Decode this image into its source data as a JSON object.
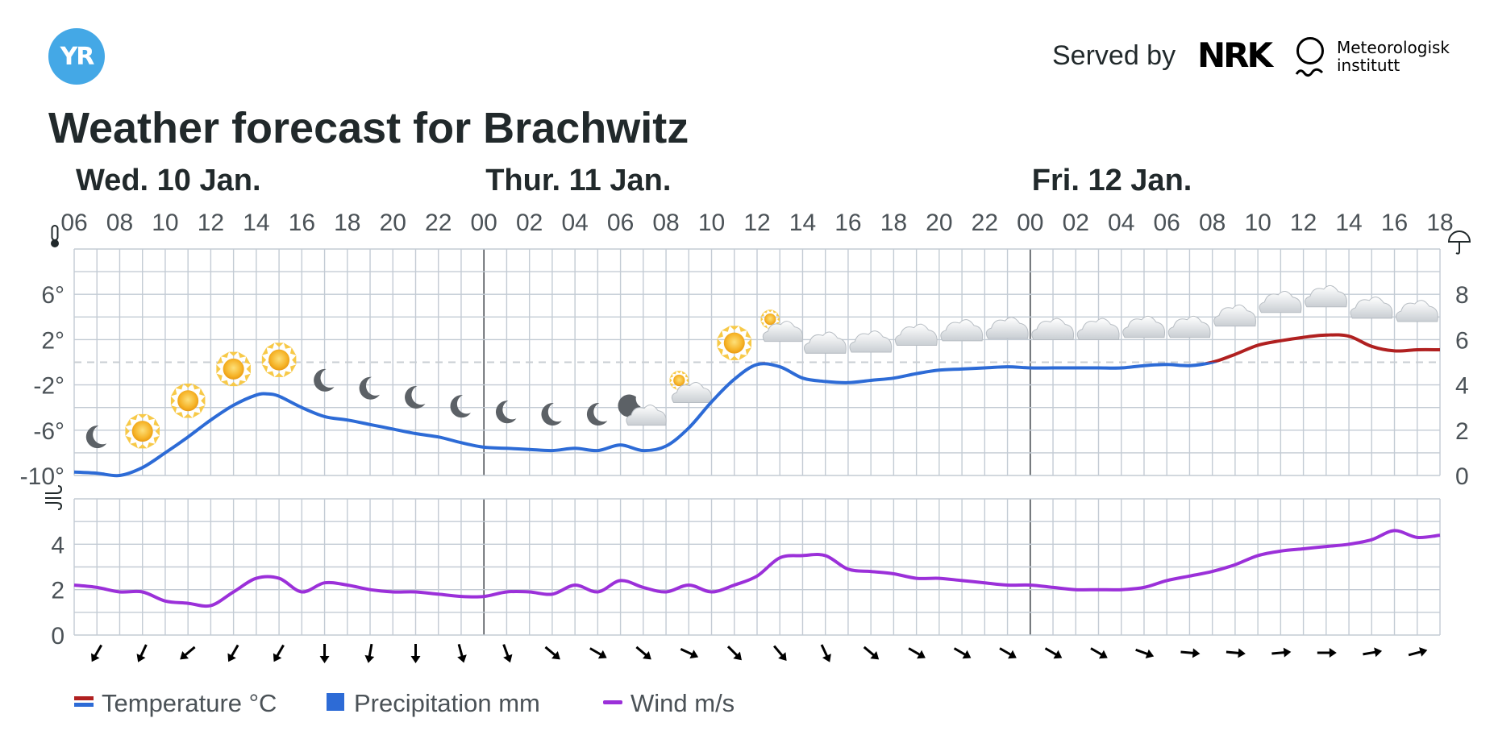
{
  "header": {
    "logo_text": "YR",
    "served_by": "Served by",
    "nrk_logo_text": "NRK",
    "met_text_line1": "Meteorologisk",
    "met_text_line2": "institutt"
  },
  "page_title": "Weather forecast for Brachwitz",
  "chart_data": [
    {
      "type": "line",
      "title": "",
      "days": [
        {
          "label": "Wed. 10 Jan.",
          "start_hour": 6
        },
        {
          "label": "Thur. 11 Jan.",
          "start_hour": 24
        },
        {
          "label": "Fri. 12 Jan.",
          "start_hour": 48
        }
      ],
      "x_range_hours": [
        6,
        66
      ],
      "x_tick_labels": [
        "06",
        "08",
        "10",
        "12",
        "14",
        "16",
        "18",
        "20",
        "22",
        "00",
        "02",
        "04",
        "06",
        "08",
        "10",
        "12",
        "14",
        "16",
        "18",
        "20",
        "22",
        "00",
        "02",
        "04",
        "06",
        "08",
        "10",
        "12",
        "14",
        "16",
        "18"
      ],
      "x_tick_hours": [
        6,
        8,
        10,
        12,
        14,
        16,
        18,
        20,
        22,
        24,
        26,
        28,
        30,
        32,
        34,
        36,
        38,
        40,
        42,
        44,
        46,
        48,
        50,
        52,
        54,
        56,
        58,
        60,
        62,
        64,
        66
      ],
      "ylabel_left": "thermometer-icon",
      "ylabel_right": "umbrella-icon",
      "y_left_ticks": [
        "6°",
        "2°",
        "-2°",
        "-6°",
        "-10°"
      ],
      "y_left_tick_values": [
        6,
        2,
        -2,
        -6,
        -10
      ],
      "y_left_range": [
        -10,
        10
      ],
      "y_right_ticks": [
        "8",
        "6",
        "4",
        "2",
        "0"
      ],
      "y_right_tick_values": [
        8,
        6,
        4,
        2,
        0
      ],
      "y_right_range": [
        0,
        10
      ],
      "zero_line": "dashed",
      "grid": true,
      "series": [
        {
          "name": "Temperature °C",
          "color_below_zero": "#2d6bd6",
          "color_above_zero": "#b02020",
          "x": [
            6,
            7,
            8,
            9,
            10,
            11,
            12,
            13,
            14,
            14.5,
            15,
            16,
            17,
            18,
            19,
            20,
            21,
            22,
            23,
            24,
            25,
            26,
            27,
            28,
            29,
            30,
            31,
            32,
            33,
            34,
            35,
            36,
            37,
            38,
            39,
            40,
            41,
            42,
            43,
            44,
            45,
            46,
            47,
            48,
            49,
            50,
            51,
            52,
            53,
            54,
            55,
            56,
            57,
            58,
            59,
            60,
            61,
            62,
            63,
            64,
            65,
            66
          ],
          "values": [
            -9.7,
            -9.8,
            -10.0,
            -9.3,
            -8.0,
            -6.6,
            -5.1,
            -3.8,
            -2.9,
            -2.8,
            -3.0,
            -4.0,
            -4.8,
            -5.1,
            -5.5,
            -5.9,
            -6.3,
            -6.6,
            -7.1,
            -7.5,
            -7.6,
            -7.7,
            -7.8,
            -7.6,
            -7.8,
            -7.3,
            -7.8,
            -7.4,
            -5.8,
            -3.5,
            -1.5,
            -0.2,
            -0.4,
            -1.4,
            -1.7,
            -1.8,
            -1.6,
            -1.4,
            -1.0,
            -0.7,
            -0.6,
            -0.5,
            -0.4,
            -0.5,
            -0.5,
            -0.5,
            -0.5,
            -0.5,
            -0.3,
            -0.2,
            -0.3,
            0.0,
            0.7,
            1.5,
            1.9,
            2.2,
            2.4,
            2.3,
            1.4,
            1.0,
            1.1,
            1.1
          ]
        }
      ],
      "symbols": [
        {
          "hour": 7,
          "icon": "moon-icon"
        },
        {
          "hour": 9,
          "icon": "sun-icon"
        },
        {
          "hour": 11,
          "icon": "sun-icon"
        },
        {
          "hour": 13,
          "icon": "sun-icon"
        },
        {
          "hour": 15,
          "icon": "sun-icon"
        },
        {
          "hour": 17,
          "icon": "moon-icon"
        },
        {
          "hour": 19,
          "icon": "moon-icon"
        },
        {
          "hour": 21,
          "icon": "moon-icon"
        },
        {
          "hour": 23,
          "icon": "moon-icon"
        },
        {
          "hour": 25,
          "icon": "moon-icon"
        },
        {
          "hour": 27,
          "icon": "moon-icon"
        },
        {
          "hour": 29,
          "icon": "moon-icon"
        },
        {
          "hour": 31,
          "icon": "moon-cloud-icon"
        },
        {
          "hour": 33,
          "icon": "sun-cloud-icon"
        },
        {
          "hour": 35,
          "icon": "sun-icon"
        },
        {
          "hour": 37,
          "icon": "sun-cloud-icon"
        },
        {
          "hour": 39,
          "icon": "cloud-icon"
        },
        {
          "hour": 41,
          "icon": "cloud-icon"
        },
        {
          "hour": 43,
          "icon": "cloud-icon"
        },
        {
          "hour": 45,
          "icon": "cloud-icon"
        },
        {
          "hour": 47,
          "icon": "cloud-icon"
        },
        {
          "hour": 49,
          "icon": "cloud-icon"
        },
        {
          "hour": 51,
          "icon": "cloud-icon"
        },
        {
          "hour": 53,
          "icon": "cloud-icon"
        },
        {
          "hour": 55,
          "icon": "cloud-icon"
        },
        {
          "hour": 57,
          "icon": "cloud-icon"
        },
        {
          "hour": 59,
          "icon": "cloud-icon"
        },
        {
          "hour": 61,
          "icon": "cloud-icon"
        },
        {
          "hour": 63,
          "icon": "cloud-icon"
        },
        {
          "hour": 65,
          "icon": "cloud-icon"
        }
      ]
    },
    {
      "type": "line",
      "title": "",
      "ylabel": "wind-icon",
      "y_ticks": [
        "4",
        "2",
        "0"
      ],
      "y_tick_values": [
        4,
        2,
        0
      ],
      "y_range": [
        0,
        6
      ],
      "grid": true,
      "series": [
        {
          "name": "Wind m/s",
          "color": "#9b30d9",
          "x": [
            6,
            7,
            8,
            9,
            10,
            11,
            12,
            13,
            14,
            15,
            16,
            17,
            18,
            19,
            20,
            21,
            22,
            23,
            24,
            25,
            26,
            27,
            28,
            29,
            30,
            31,
            32,
            33,
            34,
            35,
            36,
            37,
            38,
            39,
            40,
            41,
            42,
            43,
            44,
            45,
            46,
            47,
            48,
            49,
            50,
            51,
            52,
            53,
            54,
            55,
            56,
            57,
            58,
            59,
            60,
            61,
            62,
            63,
            64,
            65,
            66
          ],
          "values": [
            2.2,
            2.1,
            1.9,
            1.9,
            1.5,
            1.4,
            1.3,
            1.9,
            2.5,
            2.5,
            1.9,
            2.3,
            2.2,
            2.0,
            1.9,
            1.9,
            1.8,
            1.7,
            1.7,
            1.9,
            1.9,
            1.8,
            2.2,
            1.9,
            2.4,
            2.1,
            1.9,
            2.2,
            1.9,
            2.2,
            2.6,
            3.4,
            3.5,
            3.5,
            2.9,
            2.8,
            2.7,
            2.5,
            2.5,
            2.4,
            2.3,
            2.2,
            2.2,
            2.1,
            2.0,
            2.0,
            2.0,
            2.1,
            2.4,
            2.6,
            2.8,
            3.1,
            3.5,
            3.7,
            3.8,
            3.9,
            4.0,
            4.2,
            4.6,
            4.3,
            4.4
          ]
        }
      ],
      "wind_arrow_hours": [
        7,
        9,
        11,
        13,
        15,
        17,
        19,
        21,
        23,
        25,
        27,
        29,
        31,
        33,
        35,
        37,
        39,
        41,
        43,
        45,
        47,
        49,
        51,
        53,
        55,
        57,
        59,
        61,
        63,
        65
      ],
      "wind_arrow_rotations_deg": [
        30,
        25,
        50,
        30,
        30,
        0,
        10,
        0,
        345,
        340,
        310,
        300,
        310,
        295,
        315,
        320,
        335,
        310,
        300,
        300,
        300,
        300,
        300,
        290,
        275,
        275,
        265,
        270,
        260,
        255
      ]
    }
  ],
  "legend": [
    {
      "label": "Temperature °C",
      "swatch": "temperature",
      "colors": [
        "#b02020",
        "#2d6bd6"
      ]
    },
    {
      "label": "Precipitation mm",
      "swatch": "precipitation",
      "colors": [
        "#2d6bd6"
      ]
    },
    {
      "label": "Wind m/s",
      "swatch": "wind",
      "colors": [
        "#9b30d9"
      ]
    }
  ]
}
